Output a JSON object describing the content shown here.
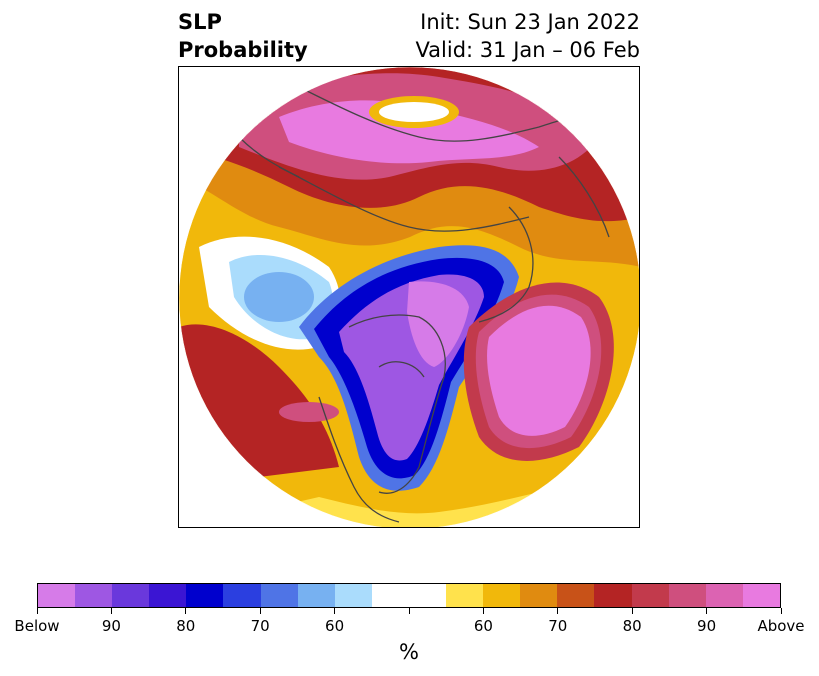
{
  "title": {
    "left_line1": "SLP",
    "left_line2": "Probability",
    "right_line1": "Init: Sun 23 Jan 2022",
    "right_line2": "Valid: 31 Jan – 06 Feb"
  },
  "colorbar": {
    "unit": "%",
    "colors": [
      "#d67be8",
      "#9e57e3",
      "#6a38dc",
      "#3b15d3",
      "#0000cd",
      "#2b3fe0",
      "#4f74e6",
      "#77b1f1",
      "#aadcfc",
      "#ffffff",
      "#ffffff",
      "#ffe24c",
      "#f1b80b",
      "#e08b10",
      "#c85218",
      "#b42424",
      "#c23a4c",
      "#cf4f7e",
      "#dc63b2",
      "#e87ae0"
    ],
    "tick_labels": [
      "Below",
      "90",
      "80",
      "70",
      "60",
      "",
      "60",
      "70",
      "80",
      "90",
      "Above"
    ]
  },
  "legend_colors": {
    "below_strong": "#d67be8",
    "below_mid": "#0000cd",
    "near_normal": "#ffffff",
    "above_mid": "#b42424",
    "above_strong": "#e87ae0"
  }
}
